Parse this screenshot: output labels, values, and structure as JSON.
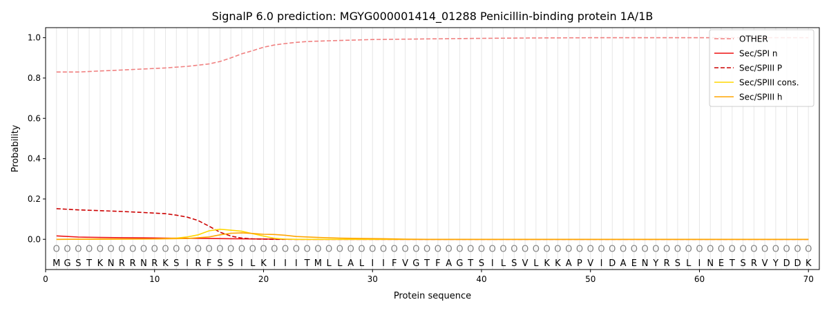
{
  "chart_data": {
    "type": "line",
    "title": "SignalP 6.0 prediction: MGYG000001414_01288 Penicillin-binding protein 1A/1B",
    "xlabel": "Protein sequence",
    "ylabel": "Probability",
    "xlim": [
      0,
      71
    ],
    "ylim": [
      -0.15,
      1.05
    ],
    "x_ticks": [
      "0",
      "10",
      "20",
      "30",
      "40",
      "50",
      "60",
      "70"
    ],
    "y_ticks": [
      "0.0",
      "0.2",
      "0.4",
      "0.6",
      "0.8",
      "1.0"
    ],
    "legend_position": "top-right",
    "sequence": [
      "M",
      "G",
      "S",
      "T",
      "K",
      "N",
      "R",
      "R",
      "N",
      "R",
      "K",
      "S",
      "I",
      "R",
      "F",
      "S",
      "S",
      "I",
      "L",
      "K",
      "I",
      "I",
      "I",
      "T",
      "M",
      "L",
      "L",
      "A",
      "L",
      "I",
      "I",
      "F",
      "V",
      "G",
      "T",
      "F",
      "A",
      "G",
      "T",
      "S",
      "I",
      "L",
      "S",
      "V",
      "L",
      "K",
      "K",
      "A",
      "P",
      "V",
      "I",
      "D",
      "A",
      "E",
      "N",
      "Y",
      "R",
      "S",
      "L",
      "I",
      "N",
      "E",
      "T",
      "S",
      "R",
      "V",
      "Y",
      "D",
      "D",
      "K"
    ],
    "region_labels": [
      "O",
      "O",
      "O",
      "O",
      "O",
      "O",
      "O",
      "O",
      "O",
      "O",
      "O",
      "O",
      "O",
      "O",
      "O",
      "O",
      "O",
      "O",
      "O",
      "O",
      "O",
      "O",
      "O",
      "O",
      "O",
      "O",
      "O",
      "O",
      "O",
      "O",
      "O",
      "O",
      "O",
      "O",
      "O",
      "O",
      "O",
      "O",
      "O",
      "O",
      "O",
      "O",
      "O",
      "O",
      "O",
      "O",
      "O",
      "O",
      "O",
      "O",
      "O",
      "O",
      "O",
      "O",
      "O",
      "O",
      "O",
      "O",
      "O",
      "O",
      "O",
      "O",
      "O",
      "O",
      "O",
      "O",
      "O",
      "O",
      "O",
      "O"
    ],
    "series": [
      {
        "name": "OTHER",
        "color": "#f08080",
        "dash": "dashed",
        "points": [
          [
            1,
            0.83
          ],
          [
            3,
            0.83
          ],
          [
            5,
            0.835
          ],
          [
            7,
            0.84
          ],
          [
            9,
            0.845
          ],
          [
            11,
            0.85
          ],
          [
            13,
            0.858
          ],
          [
            15,
            0.87
          ],
          [
            16,
            0.882
          ],
          [
            17,
            0.9
          ],
          [
            18,
            0.92
          ],
          [
            19,
            0.936
          ],
          [
            20,
            0.953
          ],
          [
            21,
            0.964
          ],
          [
            22,
            0.971
          ],
          [
            23,
            0.977
          ],
          [
            24,
            0.981
          ],
          [
            26,
            0.985
          ],
          [
            28,
            0.988
          ],
          [
            30,
            0.991
          ],
          [
            35,
            0.994
          ],
          [
            40,
            0.997
          ],
          [
            45,
            0.999
          ],
          [
            50,
            1.0
          ],
          [
            60,
            1.0
          ],
          [
            70,
            1.0
          ]
        ]
      },
      {
        "name": "Sec/SPI n",
        "color": "#ee1111",
        "dash": "solid",
        "points": [
          [
            1,
            0.017
          ],
          [
            3,
            0.011
          ],
          [
            5,
            0.009
          ],
          [
            7,
            0.008
          ],
          [
            9,
            0.007
          ],
          [
            11,
            0.006
          ],
          [
            13,
            0.005
          ],
          [
            15,
            0.004
          ],
          [
            17,
            0.003
          ],
          [
            19,
            0.002
          ],
          [
            21,
            0.001
          ],
          [
            23,
            0.0
          ],
          [
            70,
            0.0
          ]
        ]
      },
      {
        "name": "Sec/SPIII P",
        "color": "#cc0000",
        "dash": "dashed",
        "points": [
          [
            1,
            0.152
          ],
          [
            3,
            0.146
          ],
          [
            5,
            0.142
          ],
          [
            7,
            0.138
          ],
          [
            9,
            0.133
          ],
          [
            11,
            0.127
          ],
          [
            12,
            0.12
          ],
          [
            13,
            0.11
          ],
          [
            14,
            0.093
          ],
          [
            15,
            0.065
          ],
          [
            16,
            0.035
          ],
          [
            17,
            0.016
          ],
          [
            18,
            0.006
          ],
          [
            19,
            0.002
          ],
          [
            20,
            0.001
          ],
          [
            21,
            0.0
          ],
          [
            70,
            0.0
          ]
        ]
      },
      {
        "name": "Sec/SPIII cons.",
        "color": "#ffd700",
        "dash": "solid",
        "points": [
          [
            1,
            0.0
          ],
          [
            10,
            0.002
          ],
          [
            12,
            0.006
          ],
          [
            13,
            0.012
          ],
          [
            14,
            0.022
          ],
          [
            15,
            0.042
          ],
          [
            16,
            0.05
          ],
          [
            17,
            0.045
          ],
          [
            18,
            0.04
          ],
          [
            19,
            0.028
          ],
          [
            20,
            0.016
          ],
          [
            21,
            0.005
          ],
          [
            22,
            0.001
          ],
          [
            23,
            0.0
          ],
          [
            70,
            0.0
          ]
        ]
      },
      {
        "name": "Sec/SPIII h",
        "color": "#ffa500",
        "dash": "solid",
        "points": [
          [
            1,
            0.0
          ],
          [
            10,
            0.002
          ],
          [
            13,
            0.004
          ],
          [
            15,
            0.012
          ],
          [
            16,
            0.022
          ],
          [
            17,
            0.03
          ],
          [
            18,
            0.032
          ],
          [
            19,
            0.029
          ],
          [
            20,
            0.025
          ],
          [
            21,
            0.024
          ],
          [
            22,
            0.02
          ],
          [
            23,
            0.014
          ],
          [
            25,
            0.009
          ],
          [
            27,
            0.006
          ],
          [
            29,
            0.004
          ],
          [
            31,
            0.003
          ],
          [
            33,
            0.001
          ],
          [
            35,
            0.0
          ],
          [
            70,
            0.0
          ]
        ]
      }
    ]
  }
}
